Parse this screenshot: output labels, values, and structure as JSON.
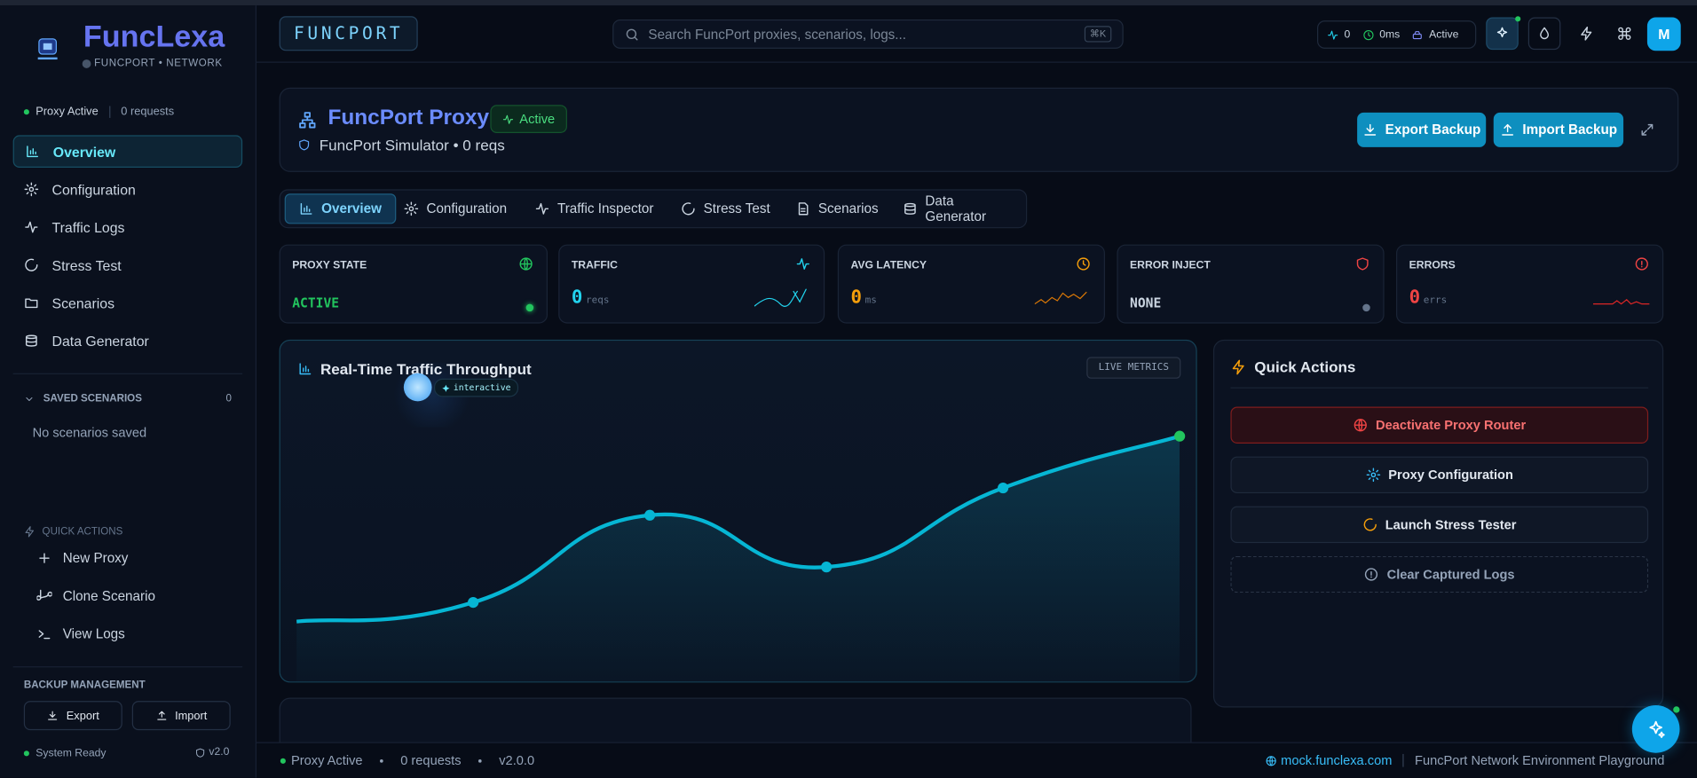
{
  "sidebar": {
    "brand": "FuncLexa",
    "tagline": "FUNCPORT • NETWORK",
    "status": "Proxy Active",
    "requests": "0 requests",
    "nav": [
      "Overview",
      "Configuration",
      "Traffic Logs",
      "Stress Test",
      "Scenarios",
      "Data Generator"
    ],
    "saved_title": "SAVED SCENARIOS",
    "saved_count": "0",
    "saved_empty": "No scenarios saved",
    "quick_title": "QUICK ACTIONS",
    "quick": [
      "New Proxy",
      "Clone Scenario",
      "View Logs"
    ],
    "backup_title": "BACKUP MANAGEMENT",
    "backup_buttons": [
      "Export",
      "Import"
    ],
    "footer_status": "System Ready",
    "version": "v2.0"
  },
  "topbar": {
    "logo": "FUNCPORT",
    "search": "Search FuncPort proxies, scenarios, logs...",
    "shortcut": "⌘K",
    "stats": [
      "0",
      "0ms",
      "Active"
    ],
    "avatar": "M"
  },
  "header": {
    "title": "FuncPort Proxy",
    "badge": "Active",
    "subtitle": "FuncPort Simulator • 0 reqs",
    "buttons": [
      "Export Backup",
      "Import Backup"
    ]
  },
  "tabs": [
    "Overview",
    "Configuration",
    "Traffic Inspector",
    "Stress Test",
    "Scenarios",
    "Data Generator"
  ],
  "cards": [
    {
      "label": "PROXY STATE",
      "value": "ACTIVE"
    },
    {
      "label": "TRAFFIC",
      "value": "0",
      "unit": "reqs"
    },
    {
      "label": "AVG LATENCY",
      "value": "0",
      "unit": "ms"
    },
    {
      "label": "ERROR INJECT",
      "value": "NONE"
    },
    {
      "label": "ERRORS",
      "value": "0",
      "unit": "errs"
    }
  ],
  "throughput": {
    "title": "Real-Time Traffic Throughput",
    "tag": "interactive",
    "badge": "LIVE METRICS",
    "values": [
      22,
      29,
      61,
      42,
      71,
      90
    ]
  },
  "quick_actions": {
    "title": "Quick Actions",
    "buttons": [
      "Deactivate Proxy Router",
      "Proxy Configuration",
      "Launch Stress Tester",
      "Clear Captured Logs"
    ]
  },
  "footer": {
    "status": "Proxy Active",
    "requests": "0 requests",
    "version": "v2.0.0",
    "link": "mock.funclexa.com",
    "tagline": "FuncPort Network Environment Playground"
  }
}
